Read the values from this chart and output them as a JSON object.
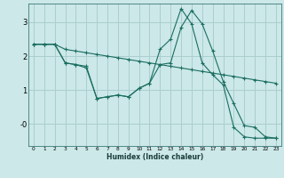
{
  "xlabel": "Humidex (Indice chaleur)",
  "bg_color": "#cce8e8",
  "grid_color": "#aacece",
  "line_color": "#1a6e60",
  "xlim": [
    -0.5,
    23.5
  ],
  "ylim": [
    -0.65,
    3.55
  ],
  "xticks": [
    0,
    1,
    2,
    3,
    4,
    5,
    6,
    7,
    8,
    9,
    10,
    11,
    12,
    13,
    14,
    15,
    16,
    17,
    18,
    19,
    20,
    21,
    22,
    23
  ],
  "yticks": [
    0,
    1,
    2,
    3
  ],
  "ytick_labels": [
    "-0",
    "1",
    "2",
    "3"
  ],
  "series": [
    [
      2.35,
      2.35,
      2.35,
      2.2,
      2.15,
      2.1,
      2.05,
      2.0,
      1.95,
      1.9,
      1.85,
      1.8,
      1.75,
      1.7,
      1.65,
      1.6,
      1.55,
      1.5,
      1.45,
      1.4,
      1.35,
      1.3,
      1.25,
      1.2
    ],
    [
      2.35,
      2.35,
      2.35,
      1.8,
      1.75,
      1.7,
      0.75,
      0.8,
      0.85,
      0.8,
      1.05,
      1.2,
      1.75,
      1.8,
      2.85,
      3.35,
      2.95,
      2.15,
      1.25,
      0.6,
      -0.05,
      -0.1,
      -0.38,
      -0.42
    ],
    [
      2.35,
      2.35,
      2.35,
      1.8,
      1.75,
      1.65,
      0.75,
      0.8,
      0.85,
      0.8,
      1.05,
      1.2,
      2.2,
      2.5,
      3.4,
      2.95,
      1.8,
      1.45,
      1.15,
      -0.1,
      -0.38,
      -0.42,
      -0.42,
      -0.42
    ]
  ]
}
